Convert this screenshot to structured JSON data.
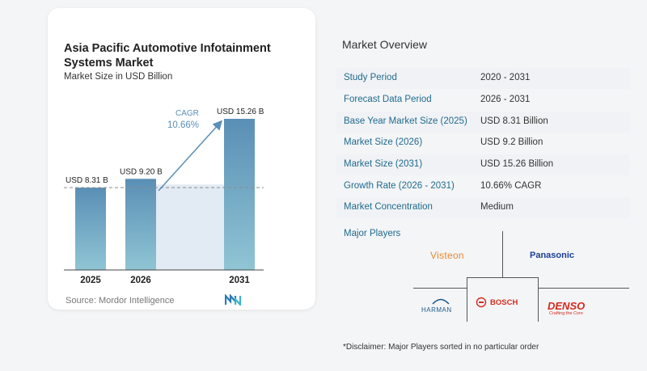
{
  "title": "Asia Pacific Automotive Infotainment Systems Market",
  "subtitle": "Market Size in USD Billion",
  "source": "Source:  Mordor Intelligence",
  "chart_data": {
    "type": "bar",
    "categories": [
      "2025",
      "2026",
      "2031"
    ],
    "values": [
      8.31,
      9.2,
      15.26
    ],
    "data_labels": [
      "USD 8.31 B",
      "USD 9.20 B",
      "USD 15.26 B"
    ],
    "annotation": {
      "label": "CAGR",
      "value": "10.66%"
    },
    "reference_line_value": 8.31,
    "ylim": [
      0,
      17
    ],
    "colors": {
      "bar_top": "#5a8fb6",
      "bar_bottom": "#8fc5d4",
      "shade": "#e2ebf4",
      "arrow": "#5a8fb6",
      "cagr": "#5a8fb6"
    }
  },
  "overview": {
    "title": "Market Overview",
    "rows": [
      {
        "label": "Study Period",
        "value": "2020 - 2031"
      },
      {
        "label": "Forecast Data Period",
        "value": "2026 - 2031"
      },
      {
        "label": "Base Year Market Size (2025)",
        "value": "USD 8.31 Billion"
      },
      {
        "label": "Market Size (2026)",
        "value": "USD 9.2 Billion"
      },
      {
        "label": "Market Size (2031)",
        "value": "USD 15.26 Billion"
      },
      {
        "label": "Growth Rate (2026 - 2031)",
        "value": "10.66% CAGR"
      },
      {
        "label": "Market Concentration",
        "value": "Medium"
      }
    ]
  },
  "players": {
    "title": "Major Players",
    "names": [
      "Visteon",
      "Panasonic",
      "HARMAN",
      "BOSCH",
      "DENSO"
    ],
    "denso_tagline": "Crafting the Core"
  },
  "disclaimer": "*Disclaimer: Major Players sorted in no particular order"
}
